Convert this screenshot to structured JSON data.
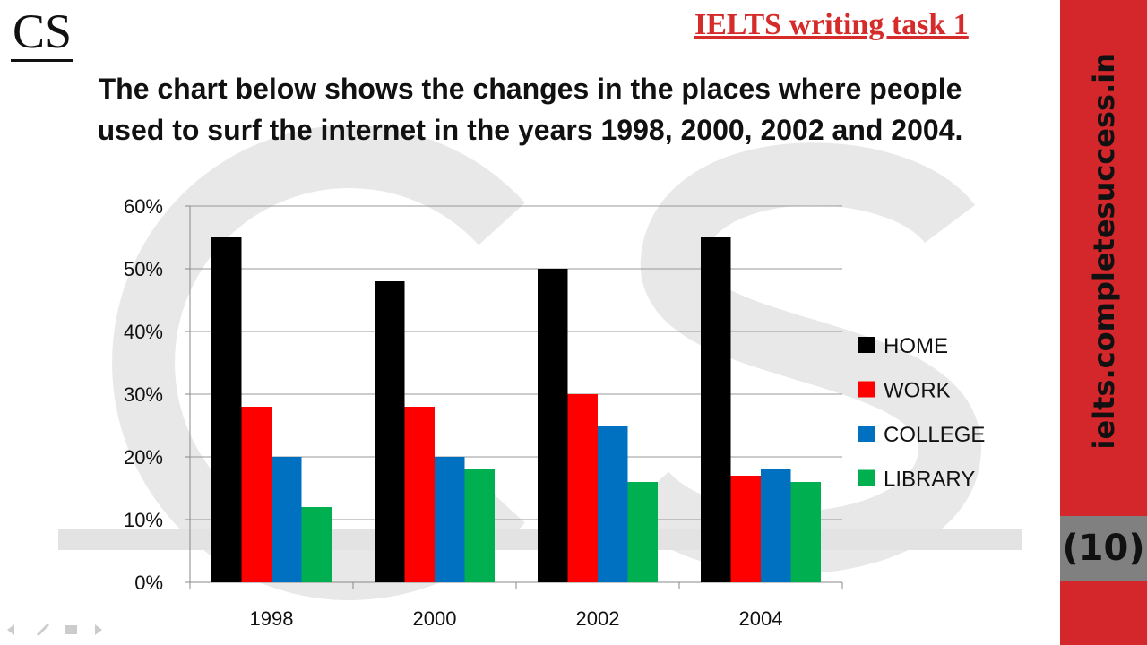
{
  "header": {
    "logo": "CS",
    "task_label": "IELTS writing task 1",
    "title_line1": "The chart below shows the changes in the places where people",
    "title_line2": "used to surf the internet in the years 1998, 2000, 2002 and 2004."
  },
  "sidebar": {
    "url": "ielts.completesuccess.in",
    "number": "(10)",
    "color": "#d3272c"
  },
  "chart_data": {
    "type": "bar",
    "categories": [
      "1998",
      "2000",
      "2002",
      "2004"
    ],
    "series": [
      {
        "name": "HOME",
        "color": "#000000",
        "values": [
          55,
          48,
          50,
          55
        ]
      },
      {
        "name": "WORK",
        "color": "#ff0000",
        "values": [
          28,
          28,
          30,
          17
        ]
      },
      {
        "name": "COLLEGE",
        "color": "#0070c0",
        "values": [
          20,
          20,
          25,
          18
        ]
      },
      {
        "name": "LIBRARY",
        "color": "#00b050",
        "values": [
          12,
          18,
          16,
          16
        ]
      }
    ],
    "yticks": [
      "0%",
      "10%",
      "20%",
      "30%",
      "40%",
      "50%",
      "60%"
    ],
    "ylim": [
      0,
      60
    ],
    "grid": true,
    "legend": "right"
  }
}
